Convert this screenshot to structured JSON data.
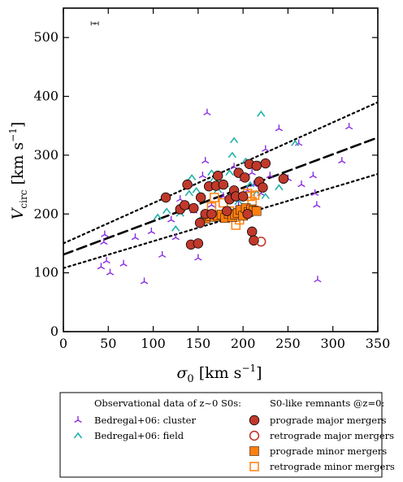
{
  "chart_data": {
    "type": "scatter",
    "xlim": [
      0,
      350
    ],
    "ylim": [
      0,
      550
    ],
    "x_ticks": [
      0,
      50,
      100,
      150,
      200,
      250,
      300,
      350
    ],
    "y_ticks": [
      0,
      100,
      200,
      300,
      400,
      500
    ],
    "xlabel_main": "σ",
    "xlabel_sub": "0",
    "xlabel_unit": "[km s",
    "xlabel_exp": "−1",
    "xlabel_close": "]",
    "ylabel_main": "V",
    "ylabel_sub": "circ",
    "ylabel_unit": "[km s",
    "ylabel_exp": "−1",
    "ylabel_close": "]",
    "error_bar": {
      "x": 35,
      "y": 524,
      "xerr": 4
    },
    "lines": [
      {
        "style": "dashed",
        "x": [
          0,
          350
        ],
        "y": [
          131,
          330
        ]
      },
      {
        "style": "dotted",
        "x": [
          0,
          350
        ],
        "y": [
          150,
          390
        ]
      },
      {
        "style": "dotted",
        "x": [
          0,
          350
        ],
        "y": [
          108,
          268
        ]
      }
    ],
    "legend": {
      "left_title": "Observational data of z~0 S0s:",
      "right_title": "S0-like remnants @z=0:",
      "left_entries": [
        "Bedregal+06: cluster",
        "Bedregal+06: field"
      ],
      "right_entries": [
        "prograde major mergers",
        "retrograde major mergers",
        "prograde minor mergers",
        "retrograde minor mergers"
      ]
    },
    "series": [
      {
        "name": "Bedregal+06: cluster",
        "marker": "tri",
        "color": "#8a2be2",
        "points": [
          [
            42,
            110
          ],
          [
            45,
            152
          ],
          [
            46,
            165
          ],
          [
            48,
            120
          ],
          [
            52,
            100
          ],
          [
            67,
            115
          ],
          [
            80,
            160
          ],
          [
            90,
            85
          ],
          [
            98,
            170
          ],
          [
            110,
            130
          ],
          [
            120,
            190
          ],
          [
            125,
            160
          ],
          [
            130,
            225
          ],
          [
            140,
            250
          ],
          [
            145,
            205
          ],
          [
            150,
            125
          ],
          [
            155,
            265
          ],
          [
            158,
            290
          ],
          [
            160,
            372
          ],
          [
            165,
            215
          ],
          [
            170,
            245
          ],
          [
            178,
            230
          ],
          [
            185,
            200
          ],
          [
            190,
            280
          ],
          [
            195,
            215
          ],
          [
            200,
            260
          ],
          [
            205,
            240
          ],
          [
            210,
            270
          ],
          [
            212,
            250
          ],
          [
            220,
            235
          ],
          [
            225,
            310
          ],
          [
            230,
            265
          ],
          [
            240,
            345
          ],
          [
            250,
            260
          ],
          [
            262,
            320
          ],
          [
            265,
            250
          ],
          [
            278,
            265
          ],
          [
            280,
            235
          ],
          [
            282,
            215
          ],
          [
            283,
            88
          ],
          [
            310,
            290
          ],
          [
            318,
            348
          ]
        ]
      },
      {
        "name": "Bedregal+06: field",
        "marker": "caret",
        "color": "#20b2aa",
        "points": [
          [
            105,
            195
          ],
          [
            115,
            205
          ],
          [
            125,
            175
          ],
          [
            130,
            200
          ],
          [
            140,
            235
          ],
          [
            143,
            262
          ],
          [
            148,
            240
          ],
          [
            152,
            190
          ],
          [
            165,
            270
          ],
          [
            168,
            260
          ],
          [
            172,
            240
          ],
          [
            180,
            250
          ],
          [
            185,
            270
          ],
          [
            188,
            300
          ],
          [
            190,
            325
          ],
          [
            195,
            220
          ],
          [
            203,
            290
          ],
          [
            208,
            250
          ],
          [
            215,
            235
          ],
          [
            218,
            285
          ],
          [
            220,
            370
          ],
          [
            225,
            230
          ],
          [
            240,
            245
          ],
          [
            258,
            320
          ]
        ]
      },
      {
        "name": "prograde major mergers",
        "marker": "circle-filled",
        "color": "#c0392b",
        "points": [
          [
            114,
            228
          ],
          [
            130,
            208
          ],
          [
            135,
            215
          ],
          [
            138,
            250
          ],
          [
            142,
            148
          ],
          [
            145,
            210
          ],
          [
            150,
            150
          ],
          [
            152,
            185
          ],
          [
            153,
            228
          ],
          [
            158,
            200
          ],
          [
            162,
            247
          ],
          [
            165,
            200
          ],
          [
            170,
            248
          ],
          [
            172,
            265
          ],
          [
            178,
            250
          ],
          [
            182,
            205
          ],
          [
            185,
            225
          ],
          [
            190,
            240
          ],
          [
            192,
            230
          ],
          [
            195,
            270
          ],
          [
            200,
            230
          ],
          [
            202,
            262
          ],
          [
            205,
            200
          ],
          [
            207,
            285
          ],
          [
            210,
            170
          ],
          [
            212,
            155
          ],
          [
            215,
            282
          ],
          [
            218,
            255
          ],
          [
            222,
            245
          ],
          [
            225,
            286
          ],
          [
            245,
            260
          ]
        ]
      },
      {
        "name": "retrograde major mergers",
        "marker": "circle-open",
        "color": "#c0392b",
        "points": [
          [
            220,
            153
          ]
        ]
      },
      {
        "name": "prograde minor mergers",
        "marker": "square-filled",
        "color": "#ff7f0e",
        "points": [
          [
            158,
            192
          ],
          [
            163,
            196
          ],
          [
            168,
            195
          ],
          [
            172,
            197
          ],
          [
            176,
            199
          ],
          [
            180,
            193
          ],
          [
            184,
            200
          ],
          [
            188,
            195
          ],
          [
            191,
            199
          ],
          [
            194,
            202
          ],
          [
            197,
            207
          ],
          [
            200,
            197
          ],
          [
            203,
            210
          ],
          [
            206,
            203
          ],
          [
            209,
            208
          ],
          [
            212,
            206
          ],
          [
            215,
            205
          ]
        ]
      },
      {
        "name": "retrograde minor mergers",
        "marker": "square-open",
        "color": "#ff7f0e",
        "points": [
          [
            165,
            212
          ],
          [
            168,
            228
          ],
          [
            178,
            219
          ],
          [
            185,
            205
          ],
          [
            192,
            181
          ],
          [
            196,
            190
          ],
          [
            205,
            235
          ],
          [
            208,
            230
          ],
          [
            210,
            221
          ],
          [
            213,
            232
          ]
        ]
      }
    ]
  }
}
